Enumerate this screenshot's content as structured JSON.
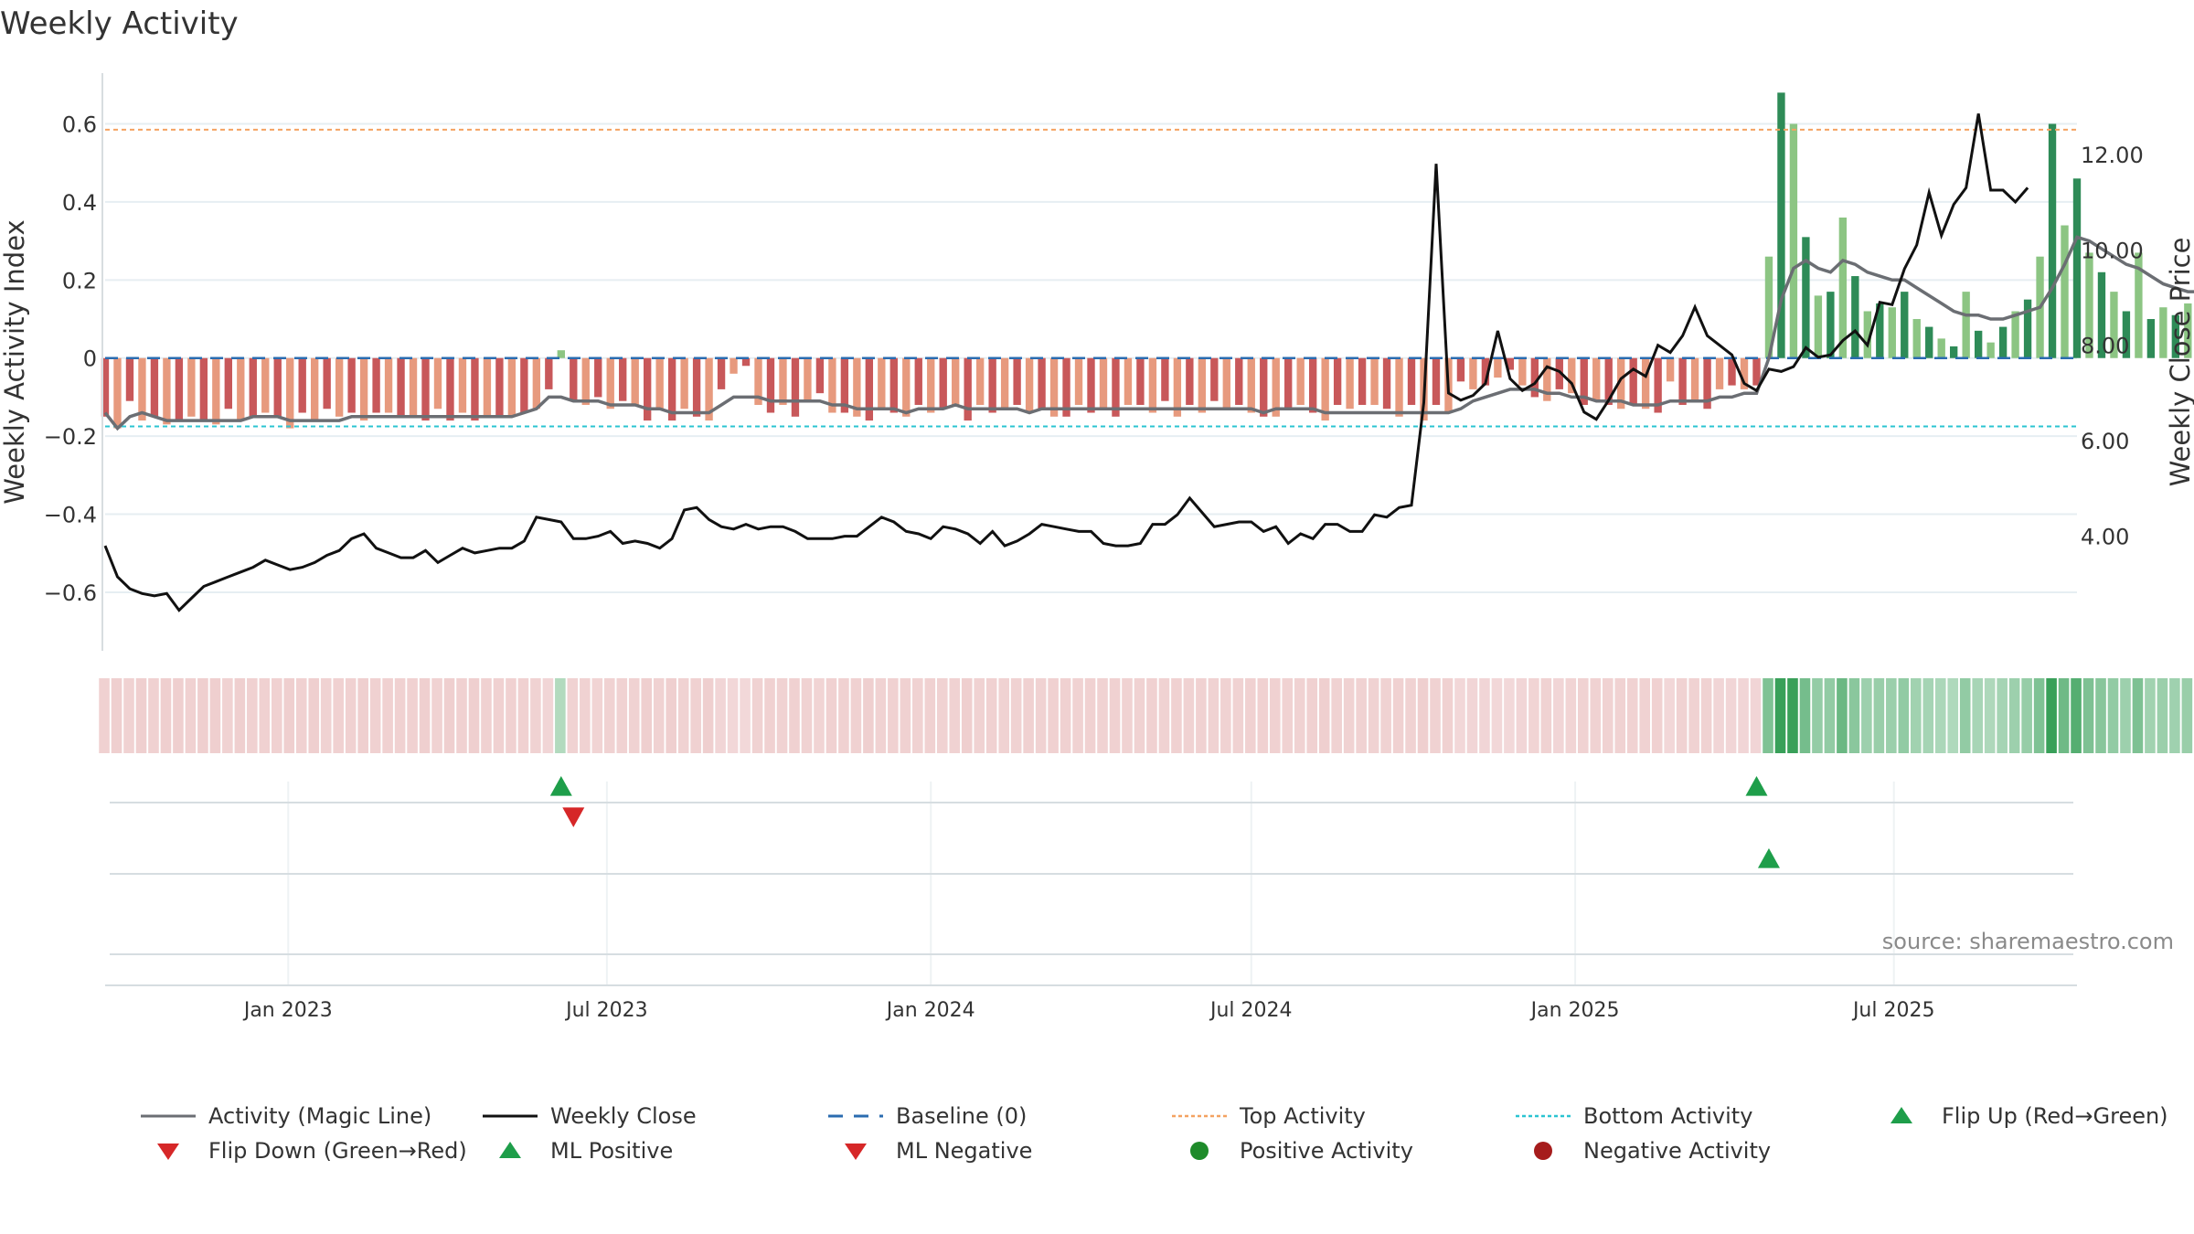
{
  "title": "Weekly Activity",
  "source": "source: sharemaestro.com",
  "colors": {
    "pos_strong": "#2E8B57",
    "pos_light": "#8CC583",
    "neg_strong": "#C8585A",
    "neg_light": "#E79A7E",
    "magic_line": "#6B6E73",
    "close_line": "#111111",
    "baseline": "#2B6CB0",
    "top_line": "#F4A261",
    "bottom_line": "#2BC4D1",
    "flip_up": "#1E9E4A",
    "flip_down": "#D62728",
    "positive_dot": "#1E8B2A",
    "negative_dot": "#A61C1C"
  },
  "chart_data": {
    "type": "bar",
    "xlabel": "",
    "ylabel": "Weekly Activity Index",
    "y2label": "Weekly Close Price",
    "ylim": [
      -0.75,
      0.73
    ],
    "y2lim": [
      1.6,
      13.7
    ],
    "yticks": [
      0.6,
      0.4,
      0.2,
      0,
      -0.2,
      -0.4,
      -0.6
    ],
    "ytick_labels": [
      "0.6",
      "0.4",
      "0.2",
      "0",
      "−0.2",
      "−0.4",
      "−0.6"
    ],
    "y2ticks": [
      12,
      10,
      8,
      6,
      4
    ],
    "y2tick_labels": [
      "12.00",
      "10.00",
      "8.00",
      "6.00",
      "4.00"
    ],
    "xlim": [
      "2022-09-19",
      "2025-10-13"
    ],
    "xticks": [
      "2023-01-01",
      "2023-07-01",
      "2024-01-01",
      "2024-07-01",
      "2025-01-01",
      "2025-07-01"
    ],
    "xtick_labels": [
      "Jan 2023",
      "Jul 2023",
      "Jan 2024",
      "Jul 2024",
      "Jan 2025",
      "Jul 2025"
    ],
    "start_date": "2022-09-19",
    "week_days": 7,
    "grid": true,
    "top_activity": 0.585,
    "bottom_activity": -0.175,
    "baseline": 0,
    "activity": [
      -0.15,
      -0.18,
      -0.11,
      -0.16,
      -0.15,
      -0.17,
      -0.16,
      -0.15,
      -0.16,
      -0.17,
      -0.13,
      -0.16,
      -0.15,
      -0.14,
      -0.15,
      -0.18,
      -0.14,
      -0.16,
      -0.13,
      -0.15,
      -0.14,
      -0.16,
      -0.14,
      -0.14,
      -0.15,
      -0.15,
      -0.16,
      -0.13,
      -0.16,
      -0.14,
      -0.16,
      -0.15,
      -0.15,
      -0.15,
      -0.14,
      -0.13,
      -0.08,
      0.02,
      -0.11,
      -0.12,
      -0.1,
      -0.13,
      -0.11,
      -0.12,
      -0.16,
      -0.13,
      -0.16,
      -0.13,
      -0.15,
      -0.16,
      -0.08,
      -0.04,
      -0.02,
      -0.12,
      -0.14,
      -0.12,
      -0.15,
      -0.11,
      -0.09,
      -0.14,
      -0.14,
      -0.15,
      -0.16,
      -0.13,
      -0.14,
      -0.15,
      -0.12,
      -0.14,
      -0.13,
      -0.12,
      -0.16,
      -0.12,
      -0.14,
      -0.13,
      -0.12,
      -0.14,
      -0.13,
      -0.15,
      -0.15,
      -0.12,
      -0.14,
      -0.13,
      -0.15,
      -0.12,
      -0.12,
      -0.14,
      -0.11,
      -0.15,
      -0.12,
      -0.14,
      -0.11,
      -0.13,
      -0.12,
      -0.14,
      -0.15,
      -0.15,
      -0.13,
      -0.12,
      -0.14,
      -0.16,
      -0.12,
      -0.13,
      -0.12,
      -0.12,
      -0.13,
      -0.15,
      -0.12,
      -0.16,
      -0.12,
      -0.14,
      -0.06,
      -0.08,
      -0.07,
      -0.05,
      -0.03,
      -0.07,
      -0.1,
      -0.11,
      -0.08,
      -0.09,
      -0.12,
      -0.11,
      -0.12,
      -0.13,
      -0.12,
      -0.13,
      -0.14,
      -0.06,
      -0.12,
      -0.11,
      -0.13,
      -0.08,
      -0.07,
      -0.08,
      -0.07,
      0.26,
      0.68,
      0.6,
      0.31,
      0.16,
      0.17,
      0.36,
      0.21,
      0.12,
      0.14,
      0.13,
      0.17,
      0.1,
      0.08,
      0.05,
      0.03,
      0.17,
      0.07,
      0.04,
      0.08,
      0.12,
      0.15,
      0.26,
      0.6,
      0.34,
      0.46,
      0.27,
      0.22,
      0.17,
      0.12,
      0.27,
      0.1,
      0.13,
      0.11,
      0.14,
      0.22,
      0.13,
      0.13,
      0.18,
      0.26,
      0.14,
      0.41,
      0.24,
      0.37,
      0.24,
      0.44,
      0.5,
      0.44,
      0.38,
      0.33,
      0.47,
      0.53,
      0.34,
      0.32,
      0.34
    ],
    "magic_line": [
      -0.14,
      -0.18,
      -0.15,
      -0.14,
      -0.15,
      -0.16,
      -0.16,
      -0.16,
      -0.16,
      -0.16,
      -0.16,
      -0.16,
      -0.15,
      -0.15,
      -0.15,
      -0.16,
      -0.16,
      -0.16,
      -0.16,
      -0.16,
      -0.15,
      -0.15,
      -0.15,
      -0.15,
      -0.15,
      -0.15,
      -0.15,
      -0.15,
      -0.15,
      -0.15,
      -0.15,
      -0.15,
      -0.15,
      -0.15,
      -0.14,
      -0.13,
      -0.1,
      -0.1,
      -0.11,
      -0.11,
      -0.11,
      -0.12,
      -0.12,
      -0.12,
      -0.13,
      -0.13,
      -0.14,
      -0.14,
      -0.14,
      -0.14,
      -0.12,
      -0.1,
      -0.1,
      -0.1,
      -0.11,
      -0.11,
      -0.11,
      -0.11,
      -0.11,
      -0.12,
      -0.12,
      -0.13,
      -0.13,
      -0.13,
      -0.13,
      -0.14,
      -0.13,
      -0.13,
      -0.13,
      -0.12,
      -0.13,
      -0.13,
      -0.13,
      -0.13,
      -0.13,
      -0.14,
      -0.13,
      -0.13,
      -0.13,
      -0.13,
      -0.13,
      -0.13,
      -0.13,
      -0.13,
      -0.13,
      -0.13,
      -0.13,
      -0.13,
      -0.13,
      -0.13,
      -0.13,
      -0.13,
      -0.13,
      -0.13,
      -0.14,
      -0.13,
      -0.13,
      -0.13,
      -0.13,
      -0.14,
      -0.14,
      -0.14,
      -0.14,
      -0.14,
      -0.14,
      -0.14,
      -0.14,
      -0.14,
      -0.14,
      -0.14,
      -0.13,
      -0.11,
      -0.1,
      -0.09,
      -0.08,
      -0.08,
      -0.08,
      -0.09,
      -0.09,
      -0.1,
      -0.1,
      -0.11,
      -0.11,
      -0.11,
      -0.12,
      -0.12,
      -0.12,
      -0.11,
      -0.11,
      -0.11,
      -0.11,
      -0.1,
      -0.1,
      -0.09,
      -0.09,
      0.0,
      0.15,
      0.23,
      0.25,
      0.23,
      0.22,
      0.25,
      0.24,
      0.22,
      0.21,
      0.2,
      0.2,
      0.18,
      0.16,
      0.14,
      0.12,
      0.11,
      0.11,
      0.1,
      0.1,
      0.11,
      0.12,
      0.13,
      0.18,
      0.24,
      0.31,
      0.3,
      0.28,
      0.26,
      0.24,
      0.23,
      0.21,
      0.19,
      0.18,
      0.17,
      0.17,
      0.17,
      0.16,
      0.16,
      0.17,
      0.18,
      0.19,
      0.22,
      0.24,
      0.26,
      0.28,
      0.32,
      0.37,
      0.37,
      0.37,
      0.4,
      0.41,
      0.4,
      0.38,
      0.37
    ],
    "weekly_close": [
      3.8,
      3.15,
      2.9,
      2.8,
      2.75,
      2.8,
      2.45,
      2.7,
      2.95,
      3.05,
      3.15,
      3.25,
      3.35,
      3.5,
      3.4,
      3.3,
      3.35,
      3.45,
      3.6,
      3.7,
      3.95,
      4.05,
      3.75,
      3.65,
      3.55,
      3.55,
      3.7,
      3.45,
      3.6,
      3.75,
      3.65,
      3.7,
      3.75,
      3.75,
      3.9,
      4.4,
      4.35,
      4.3,
      3.95,
      3.95,
      4.0,
      4.1,
      3.85,
      3.9,
      3.85,
      3.75,
      3.95,
      4.55,
      4.6,
      4.35,
      4.2,
      4.15,
      4.25,
      4.15,
      4.2,
      4.2,
      4.1,
      3.95,
      3.95,
      3.95,
      4.0,
      4.0,
      4.2,
      4.4,
      4.3,
      4.1,
      4.05,
      3.95,
      4.2,
      4.15,
      4.05,
      3.85,
      4.1,
      3.8,
      3.9,
      4.05,
      4.25,
      4.2,
      4.15,
      4.1,
      4.1,
      3.85,
      3.8,
      3.8,
      3.85,
      4.25,
      4.25,
      4.45,
      4.8,
      4.5,
      4.2,
      4.25,
      4.3,
      4.3,
      4.1,
      4.2,
      3.85,
      4.05,
      3.95,
      4.25,
      4.25,
      4.1,
      4.1,
      4.45,
      4.4,
      4.6,
      4.65,
      6.8,
      11.8,
      7.0,
      6.85,
      6.95,
      7.2,
      8.3,
      7.3,
      7.05,
      7.2,
      7.55,
      7.45,
      7.2,
      6.6,
      6.45,
      6.85,
      7.3,
      7.5,
      7.35,
      8.0,
      7.85,
      8.2,
      8.8,
      8.2,
      8.0,
      7.8,
      7.2,
      7.05,
      7.5,
      7.45,
      7.55,
      7.95,
      7.75,
      7.8,
      8.1,
      8.3,
      8.0,
      8.9,
      8.85,
      9.6,
      10.1,
      11.2,
      10.3,
      10.95,
      11.3,
      12.85,
      11.25,
      11.25,
      11.0,
      11.3
    ]
  },
  "flip_row": {
    "flip_up_index": [
      37,
      134
    ],
    "flip_down_index": [
      38
    ],
    "ml_positive_index": [
      135
    ]
  },
  "legend": [
    {
      "key": "magic",
      "label": "Activity (Magic Line)",
      "icon": "solid-line"
    },
    {
      "key": "close",
      "label": "Weekly Close",
      "icon": "solid-line"
    },
    {
      "key": "baseline",
      "label": "Baseline (0)",
      "icon": "dashed-line"
    },
    {
      "key": "top",
      "label": "Top Activity",
      "icon": "dotted-line"
    },
    {
      "key": "bottom",
      "label": "Bottom Activity",
      "icon": "dotted-line"
    },
    {
      "key": "flip_up",
      "label": "Flip Up (Red→Green)",
      "icon": "triangle-up"
    },
    {
      "key": "flip_down",
      "label": "Flip Down (Green→Red)",
      "icon": "triangle-down"
    },
    {
      "key": "ml_pos",
      "label": "ML Positive",
      "icon": "triangle-up"
    },
    {
      "key": "ml_neg",
      "label": "ML Negative",
      "icon": "triangle-down"
    },
    {
      "key": "pos_act",
      "label": "Positive Activity",
      "icon": "circle"
    },
    {
      "key": "neg_act",
      "label": "Negative Activity",
      "icon": "circle"
    }
  ]
}
